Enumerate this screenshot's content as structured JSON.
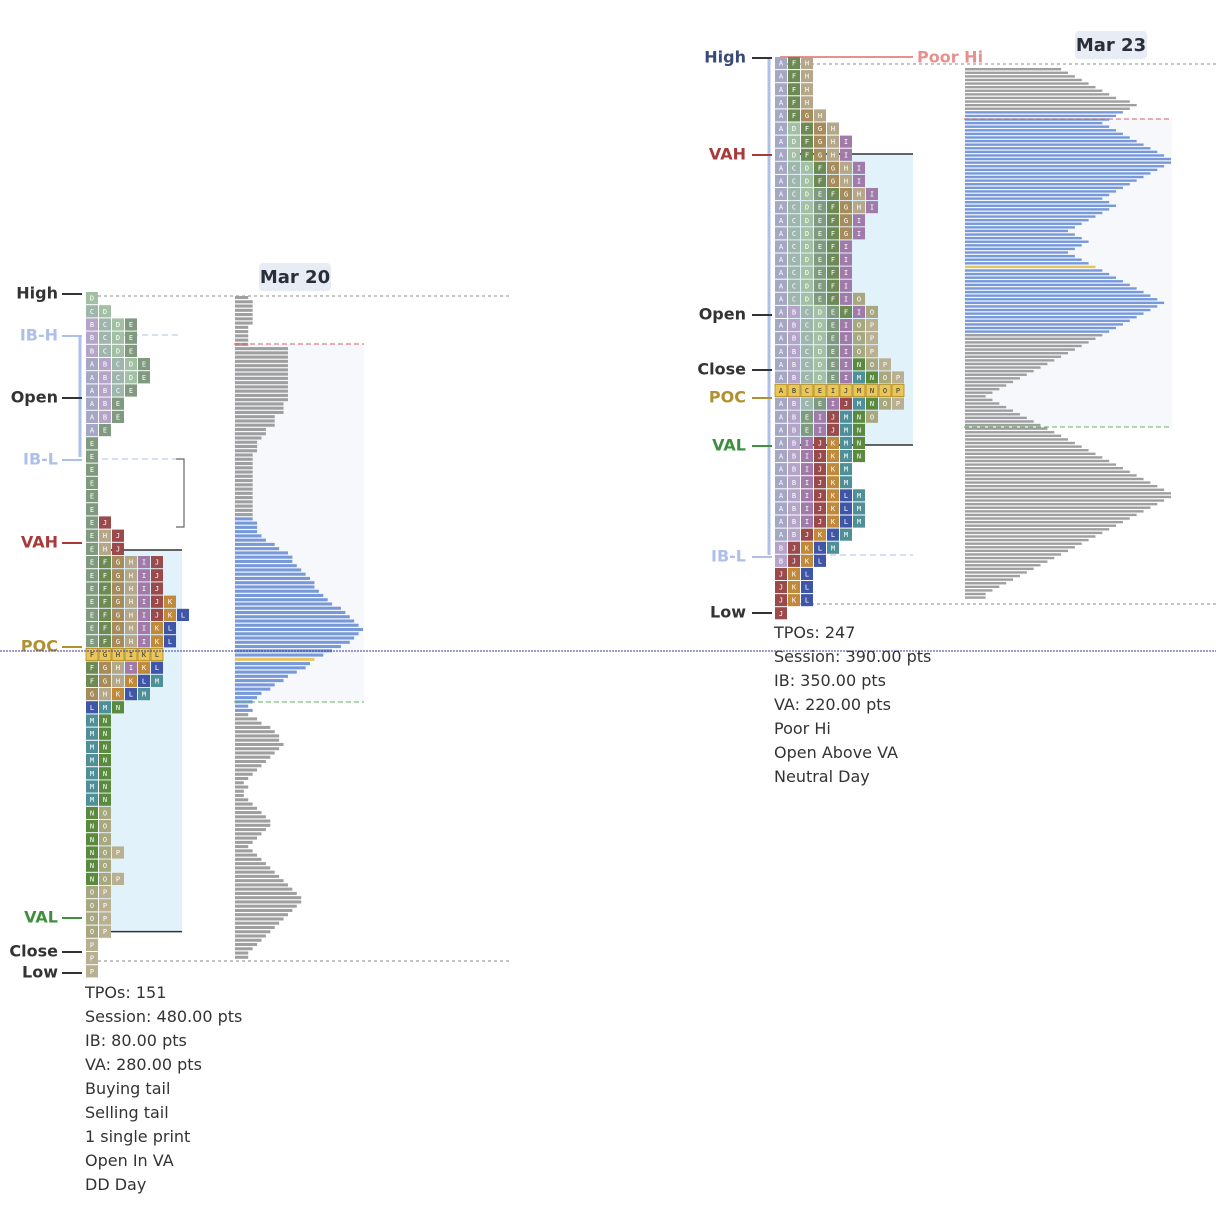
{
  "colors": {
    "A": "#a5a8c4",
    "B": "#b4a4c8",
    "C": "#9fb6ac",
    "D": "#a3c0a4",
    "E": "#7f9a7e",
    "F": "#6e8a54",
    "G": "#a68c5c",
    "H": "#b5a78a",
    "I": "#a07aa8",
    "J": "#9a4a4a",
    "K": "#c08a3a",
    "L": "#3f55a8",
    "M": "#4f8f98",
    "N": "#5a8a3e",
    "O": "#a8a880",
    "P": "#b8b090",
    "poc_fill": "#e8c65a",
    "va_fill": "#e1f2fb",
    "high_low": "#333333",
    "ib": "#aec0e8",
    "vah": "#a83a3a",
    "val": "#3f8f3f",
    "poc": "#b09030",
    "poor": "#e89090",
    "profile_in": "#7094d8",
    "profile_out": "#9a9a9a"
  },
  "chart_data": [
    {
      "type": "tpo-profile",
      "title": "Mar 20",
      "labels": {
        "high": "High",
        "ib_high": "IB-H",
        "open": "Open",
        "ib_low": "IB-L",
        "vah": "VAH",
        "poc": "POC",
        "val": "VAL",
        "close": "Close",
        "low": "Low"
      },
      "stats": {
        "tpos": "TPOs: 151",
        "session": "Session: 480.00 pts",
        "ib": "IB: 80.00 pts",
        "va": "VA: 280.00 pts"
      },
      "notes": [
        "Buying tail",
        "Selling tail",
        "1 single print",
        "Open In VA",
        "DD Day"
      ],
      "rows": [
        "D",
        "CD",
        "BCDE",
        "BCDE",
        "BCDE",
        "ABCDE",
        "ABCDE",
        "ABCE",
        "ABE",
        "ABE",
        "AE",
        "E",
        "E",
        "E",
        "E",
        "E",
        "E",
        "EJ",
        "EHJ",
        "EHJ",
        "EFGHIJ",
        "EFGHIJ",
        "EFGHIJ",
        "EFGHIJK",
        "EFGHIJKL",
        "EFGHIKL",
        "EFGHIKL",
        "FGHIKL",
        "FGHIKL",
        "FGHKLM",
        "GHKLM",
        "LMN",
        "MN",
        "MN",
        "MN",
        "MN",
        "MN",
        "MN",
        "MN",
        "NO",
        "NO",
        "NO",
        "NOP",
        "NO",
        "NOP",
        "OP",
        "OP",
        "OP",
        "OP",
        "P",
        "P",
        "P"
      ],
      "poc_row": 27,
      "profile": [
        3,
        4,
        4,
        4,
        4,
        4,
        4,
        3,
        3,
        3,
        3,
        3,
        12,
        12,
        12,
        12,
        12,
        12,
        12,
        12,
        12,
        12,
        12,
        12,
        12,
        11,
        11,
        11,
        9,
        9,
        9,
        7,
        7,
        6,
        5,
        5,
        5,
        4,
        4,
        4,
        4,
        4,
        4,
        4,
        4,
        4,
        4,
        4,
        4,
        4,
        4,
        4,
        4,
        5,
        5,
        5,
        6,
        7,
        9,
        10,
        12,
        13,
        13,
        14,
        15,
        16,
        17,
        18,
        18,
        19,
        20,
        21,
        22,
        24,
        25,
        26,
        27,
        28,
        29,
        28,
        27,
        26,
        24,
        22,
        20,
        18,
        17,
        16,
        14,
        12,
        11,
        9,
        8,
        6,
        5,
        4,
        3,
        4,
        3,
        5,
        6,
        8,
        9,
        10,
        10,
        11,
        10,
        9,
        8,
        7,
        6,
        5,
        4,
        3,
        2,
        3,
        2,
        2,
        3,
        4,
        5,
        6,
        7,
        8,
        8,
        7,
        6,
        5,
        4,
        3,
        4,
        5,
        6,
        7,
        8,
        9,
        10,
        11,
        12,
        13,
        14,
        15,
        15,
        14,
        13,
        12,
        11,
        10,
        9,
        8,
        7,
        6,
        5,
        4,
        3,
        3
      ],
      "ib_high_idx": 12,
      "ib_low_idx": 34,
      "vah_idx": 52,
      "val_idx": 97,
      "poc_idx": 85
    },
    {
      "type": "tpo-profile",
      "title": "Mar 23",
      "labels": {
        "high": "High",
        "poor_high": "Poor Hi",
        "vah": "VAH",
        "open": "Open",
        "close": "Close",
        "poc": "POC",
        "val": "VAL",
        "ib_low": "IB-L",
        "low": "Low"
      },
      "stats": {
        "tpos": "TPOs: 247",
        "session": "Session: 390.00 pts",
        "ib": "IB: 350.00 pts",
        "va": "VA: 220.00 pts"
      },
      "notes": [
        "Poor Hi",
        "Open Above VA",
        "Neutral Day"
      ],
      "rows": [
        "AFH",
        "AFH",
        "AFH",
        "AFH",
        "AFGH",
        "ADFGH",
        "ADFGHI",
        "ADFGHI",
        "ACDFGHI",
        "ACDFGHI",
        "ACDEFGHI",
        "ACDEFGHI",
        "ACDEFGI",
        "ACDEFGI",
        "ACDEFI",
        "ACDEFI",
        "ACDEFI",
        "ACDEFI",
        "ACDEFIO",
        "ABCDEFIO",
        "ABCDEIOP",
        "ABCDEIOP",
        "ABCDEIOP",
        "ABCDEINOP",
        "ABCDEIMNOP",
        "ABCEIJMNOP",
        "ABCEIJMNOP",
        "ABEIJMNO",
        "ABEIJMN",
        "ABIJKMN",
        "ABIJKMN",
        "ABIJKM",
        "ABIJKM",
        "ABIJKLM",
        "ABIJKLM",
        "ABIJKLM",
        "ABJKLM",
        "BJKLM",
        "BJKL",
        "JKL",
        "JKL",
        "JKL",
        "J"
      ],
      "poc_row": 25,
      "profile": [
        14,
        15,
        16,
        17,
        18,
        19,
        20,
        21,
        22,
        24,
        25,
        24,
        23,
        22,
        21,
        20,
        21,
        22,
        23,
        24,
        25,
        26,
        27,
        28,
        29,
        30,
        30,
        29,
        28,
        27,
        26,
        25,
        24,
        23,
        22,
        21,
        20,
        21,
        22,
        21,
        20,
        19,
        18,
        17,
        16,
        15,
        16,
        17,
        18,
        17,
        16,
        15,
        16,
        17,
        18,
        19,
        20,
        21,
        22,
        23,
        24,
        25,
        26,
        27,
        28,
        29,
        28,
        27,
        26,
        25,
        24,
        23,
        22,
        21,
        20,
        19,
        18,
        17,
        16,
        15,
        14,
        13,
        12,
        11,
        10,
        9,
        8,
        7,
        6,
        5,
        4,
        3,
        4,
        5,
        6,
        7,
        8,
        9,
        10,
        11,
        12,
        13,
        14,
        15,
        16,
        17,
        18,
        19,
        20,
        21,
        22,
        23,
        24,
        25,
        26,
        27,
        28,
        29,
        30,
        30,
        29,
        28,
        27,
        26,
        25,
        24,
        23,
        22,
        21,
        20,
        19,
        18,
        17,
        16,
        15,
        14,
        13,
        12,
        11,
        10,
        9,
        8,
        7,
        6,
        5,
        4,
        3,
        3
      ],
      "vah_idx": 12,
      "val_idx": 73,
      "poc_idx": 55
    }
  ]
}
